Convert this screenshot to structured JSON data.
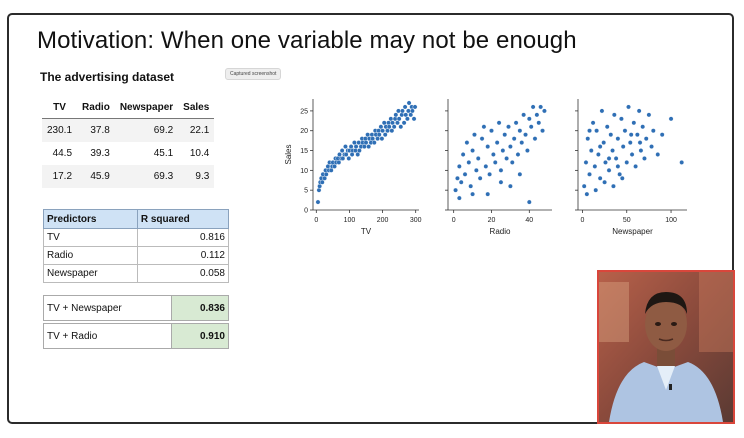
{
  "slide": {
    "title": "Motivation: When one variable may not be enough",
    "subtitle": "The advertising dataset",
    "badge": "Captured screenshot"
  },
  "data_table": {
    "headers": [
      "TV",
      "Radio",
      "Newspaper",
      "Sales"
    ],
    "rows": [
      [
        "230.1",
        "37.8",
        "69.2",
        "22.1"
      ],
      [
        "44.5",
        "39.3",
        "45.1",
        "10.4"
      ],
      [
        "17.2",
        "45.9",
        "69.3",
        "9.3"
      ]
    ]
  },
  "r2_table": {
    "headers": [
      "Predictors",
      "R squared"
    ],
    "rows": [
      [
        "TV",
        "0.816"
      ],
      [
        "Radio",
        "0.112"
      ],
      [
        "Newspaper",
        "0.058"
      ]
    ]
  },
  "combos": [
    [
      "TV + Newspaper",
      "0.836"
    ],
    [
      "TV + Radio",
      "0.910"
    ]
  ],
  "chart_data": [
    {
      "type": "scatter",
      "xlabel": "TV",
      "ylabel": "Sales",
      "xticks": [
        0,
        100,
        200,
        300
      ],
      "yticks": [
        0,
        5,
        10,
        15,
        20,
        25
      ],
      "xlim": [
        -10,
        310
      ],
      "ylim": [
        0,
        28
      ],
      "color": "#2f6fb5",
      "points": [
        [
          5,
          2
        ],
        [
          8,
          5
        ],
        [
          10,
          6
        ],
        [
          12,
          7
        ],
        [
          15,
          8
        ],
        [
          18,
          7
        ],
        [
          20,
          9
        ],
        [
          25,
          8
        ],
        [
          28,
          10
        ],
        [
          30,
          9
        ],
        [
          35,
          11
        ],
        [
          38,
          10
        ],
        [
          40,
          12
        ],
        [
          45,
          10
        ],
        [
          48,
          11
        ],
        [
          50,
          12
        ],
        [
          55,
          11
        ],
        [
          58,
          13
        ],
        [
          60,
          12
        ],
        [
          65,
          13
        ],
        [
          68,
          12
        ],
        [
          70,
          14
        ],
        [
          75,
          13
        ],
        [
          78,
          15
        ],
        [
          80,
          13
        ],
        [
          85,
          14
        ],
        [
          88,
          16
        ],
        [
          90,
          14
        ],
        [
          95,
          15
        ],
        [
          98,
          13
        ],
        [
          100,
          15
        ],
        [
          105,
          16
        ],
        [
          108,
          14
        ],
        [
          110,
          15
        ],
        [
          115,
          17
        ],
        [
          118,
          15
        ],
        [
          120,
          16
        ],
        [
          125,
          14
        ],
        [
          128,
          17
        ],
        [
          130,
          15
        ],
        [
          135,
          16
        ],
        [
          138,
          18
        ],
        [
          140,
          17
        ],
        [
          145,
          16
        ],
        [
          148,
          18
        ],
        [
          150,
          17
        ],
        [
          155,
          19
        ],
        [
          158,
          16
        ],
        [
          160,
          18
        ],
        [
          165,
          17
        ],
        [
          168,
          19
        ],
        [
          170,
          18
        ],
        [
          175,
          17
        ],
        [
          178,
          20
        ],
        [
          180,
          19
        ],
        [
          185,
          18
        ],
        [
          188,
          20
        ],
        [
          190,
          19
        ],
        [
          195,
          21
        ],
        [
          198,
          18
        ],
        [
          200,
          20
        ],
        [
          205,
          22
        ],
        [
          208,
          19
        ],
        [
          210,
          21
        ],
        [
          215,
          20
        ],
        [
          218,
          22
        ],
        [
          220,
          21
        ],
        [
          225,
          23
        ],
        [
          228,
          20
        ],
        [
          230,
          22
        ],
        [
          235,
          21
        ],
        [
          238,
          23
        ],
        [
          240,
          24
        ],
        [
          245,
          22
        ],
        [
          248,
          25
        ],
        [
          250,
          23
        ],
        [
          255,
          21
        ],
        [
          258,
          24
        ],
        [
          260,
          25
        ],
        [
          265,
          22
        ],
        [
          268,
          26
        ],
        [
          270,
          24
        ],
        [
          275,
          23
        ],
        [
          278,
          25
        ],
        [
          280,
          27
        ],
        [
          285,
          24
        ],
        [
          288,
          26
        ],
        [
          290,
          25
        ],
        [
          295,
          23
        ],
        [
          298,
          26
        ]
      ]
    },
    {
      "type": "scatter",
      "xlabel": "Radio",
      "ylabel": "",
      "xticks": [
        0,
        20,
        40
      ],
      "xlim": [
        -3,
        52
      ],
      "ylim": [
        0,
        28
      ],
      "color": "#2f6fb5",
      "points": [
        [
          1,
          5
        ],
        [
          2,
          8
        ],
        [
          3,
          11
        ],
        [
          4,
          7
        ],
        [
          5,
          14
        ],
        [
          6,
          9
        ],
        [
          7,
          17
        ],
        [
          8,
          12
        ],
        [
          9,
          6
        ],
        [
          10,
          15
        ],
        [
          11,
          19
        ],
        [
          12,
          10
        ],
        [
          13,
          13
        ],
        [
          14,
          8
        ],
        [
          15,
          18
        ],
        [
          16,
          21
        ],
        [
          17,
          11
        ],
        [
          18,
          16
        ],
        [
          19,
          9
        ],
        [
          20,
          20
        ],
        [
          21,
          14
        ],
        [
          22,
          12
        ],
        [
          23,
          17
        ],
        [
          24,
          22
        ],
        [
          25,
          10
        ],
        [
          26,
          15
        ],
        [
          27,
          19
        ],
        [
          28,
          13
        ],
        [
          29,
          21
        ],
        [
          30,
          16
        ],
        [
          31,
          12
        ],
        [
          32,
          18
        ],
        [
          33,
          22
        ],
        [
          34,
          14
        ],
        [
          35,
          20
        ],
        [
          36,
          17
        ],
        [
          37,
          24
        ],
        [
          38,
          19
        ],
        [
          39,
          15
        ],
        [
          40,
          23
        ],
        [
          41,
          21
        ],
        [
          42,
          26
        ],
        [
          43,
          18
        ],
        [
          44,
          24
        ],
        [
          45,
          22
        ],
        [
          46,
          26
        ],
        [
          47,
          20
        ],
        [
          48,
          25
        ],
        [
          3,
          3
        ],
        [
          18,
          4
        ],
        [
          30,
          6
        ],
        [
          40,
          2
        ],
        [
          25,
          7
        ],
        [
          10,
          4
        ],
        [
          35,
          9
        ]
      ]
    },
    {
      "type": "scatter",
      "xlabel": "Newspaper",
      "ylabel": "",
      "xticks": [
        0,
        50,
        100
      ],
      "xlim": [
        -5,
        118
      ],
      "ylim": [
        0,
        28
      ],
      "color": "#2f6fb5",
      "points": [
        [
          2,
          6
        ],
        [
          4,
          12
        ],
        [
          6,
          18
        ],
        [
          8,
          9
        ],
        [
          10,
          15
        ],
        [
          12,
          22
        ],
        [
          14,
          11
        ],
        [
          16,
          20
        ],
        [
          18,
          14
        ],
        [
          20,
          8
        ],
        [
          22,
          25
        ],
        [
          24,
          17
        ],
        [
          26,
          12
        ],
        [
          28,
          21
        ],
        [
          30,
          10
        ],
        [
          32,
          19
        ],
        [
          34,
          15
        ],
        [
          36,
          24
        ],
        [
          38,
          13
        ],
        [
          40,
          18
        ],
        [
          42,
          9
        ],
        [
          44,
          23
        ],
        [
          46,
          16
        ],
        [
          48,
          20
        ],
        [
          50,
          12
        ],
        [
          52,
          26
        ],
        [
          54,
          17
        ],
        [
          56,
          14
        ],
        [
          58,
          22
        ],
        [
          60,
          11
        ],
        [
          62,
          19
        ],
        [
          64,
          25
        ],
        [
          66,
          15
        ],
        [
          68,
          21
        ],
        [
          70,
          13
        ],
        [
          72,
          18
        ],
        [
          75,
          24
        ],
        [
          78,
          16
        ],
        [
          80,
          20
        ],
        [
          85,
          14
        ],
        [
          90,
          19
        ],
        [
          100,
          23
        ],
        [
          112,
          12
        ],
        [
          5,
          4
        ],
        [
          15,
          5
        ],
        [
          25,
          7
        ],
        [
          35,
          6
        ],
        [
          45,
          8
        ],
        [
          8,
          20
        ],
        [
          20,
          16
        ],
        [
          30,
          13
        ],
        [
          40,
          11
        ],
        [
          55,
          19
        ],
        [
          65,
          17
        ]
      ]
    }
  ]
}
